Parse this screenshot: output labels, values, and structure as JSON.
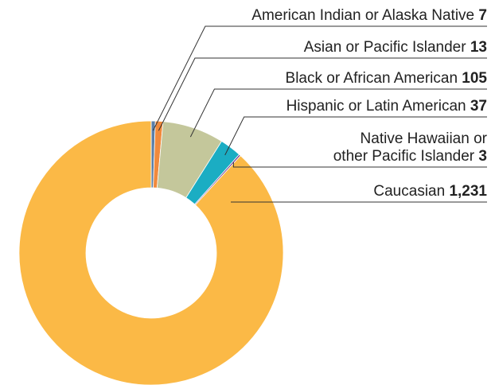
{
  "chart_data": {
    "type": "donut",
    "categories": [
      "American Indian or Alaska Native",
      "Asian or Pacific Islander",
      "Black or African American",
      "Hispanic or Latin American",
      "Native Hawaiian or\nother Pacific Islander",
      "Caucasian"
    ],
    "values": [
      7,
      13,
      105,
      37,
      3,
      1231
    ],
    "value_labels": [
      "7",
      "13",
      "105",
      "37",
      "3",
      "1,231"
    ],
    "colors": [
      "#5a7fa8",
      "#f08a3c",
      "#c4c79b",
      "#1badc3",
      "#7a3f91",
      "#fbb946"
    ]
  }
}
